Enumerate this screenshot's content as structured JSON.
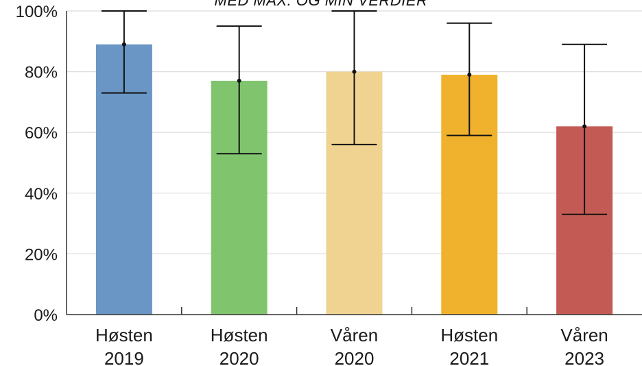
{
  "chart_data": {
    "type": "bar",
    "title": "MED MAX. OG MIN VERDIER",
    "categories": [
      {
        "line1": "Høsten",
        "line2": "2019"
      },
      {
        "line1": "Høsten",
        "line2": "2020"
      },
      {
        "line1": "Våren",
        "line2": "2020"
      },
      {
        "line1": "Høsten",
        "line2": "2021"
      },
      {
        "line1": "Våren",
        "line2": "2023"
      }
    ],
    "values": [
      89,
      77,
      80,
      79,
      62
    ],
    "error_max": [
      100,
      95,
      100,
      96,
      89
    ],
    "error_min": [
      73,
      53,
      56,
      59,
      33
    ],
    "colors": [
      "#6a96c6",
      "#80c56e",
      "#f1d391",
      "#f0b22c",
      "#c45a54"
    ],
    "ylim": [
      0,
      100
    ],
    "yticks": [
      "0%",
      "20%",
      "40%",
      "60%",
      "80%",
      "100%"
    ],
    "grid": true,
    "xlabel": "",
    "ylabel": ""
  }
}
